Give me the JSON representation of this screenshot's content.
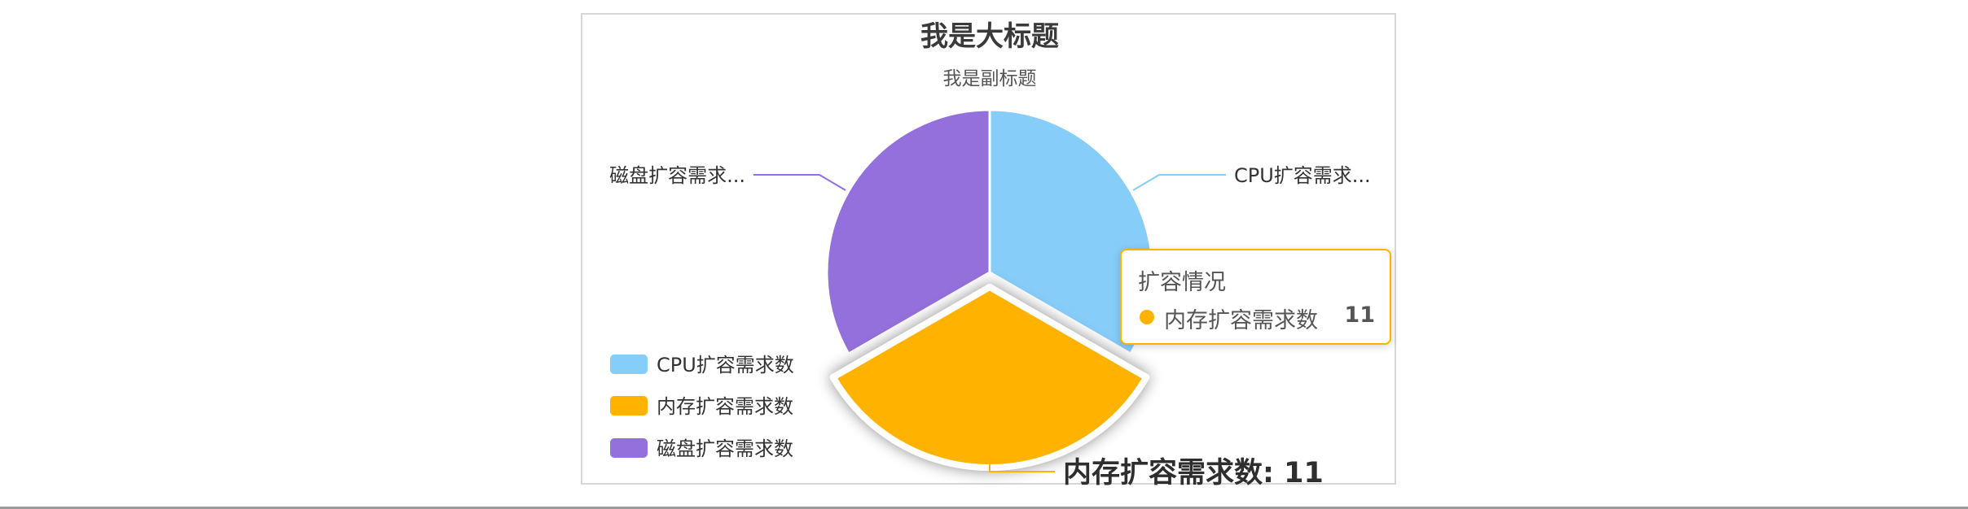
{
  "chart_data": {
    "type": "pie",
    "title": "我是大标题",
    "subtitle": "我是副标题",
    "series_name": "扩容情况",
    "slices": [
      {
        "name": "CPU扩容需求数",
        "short_label": "CPU扩容需求...",
        "value": 11,
        "color": "#87cdf9"
      },
      {
        "name": "内存扩容需求数",
        "short_label": "内存扩容需求数: 11",
        "value": 11,
        "color": "#ffb200",
        "highlighted": true
      },
      {
        "name": "磁盘扩容需求数",
        "short_label": "磁盘扩容需求...",
        "value": 11,
        "color": "#9470dc"
      }
    ],
    "legend": {
      "position": "bottom-left",
      "entries": [
        "CPU扩容需求数",
        "内存扩容需求数",
        "磁盘扩容需求数"
      ]
    }
  },
  "tooltip": {
    "title": "扩容情况",
    "name": "内存扩容需求数",
    "value": "11",
    "color": "#ffb200"
  }
}
